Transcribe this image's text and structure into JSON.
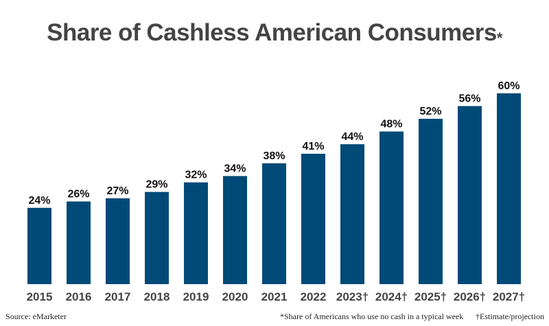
{
  "chart_data": {
    "type": "bar",
    "title": "Share of Cashless American Consumers",
    "title_mark": "*",
    "categories": [
      "2015",
      "2016",
      "2017",
      "2018",
      "2019",
      "2020",
      "2021",
      "2022",
      "2023†",
      "2024†",
      "2025†",
      "2026†",
      "2027†"
    ],
    "values": [
      24,
      26,
      27,
      29,
      32,
      34,
      38,
      41,
      44,
      48,
      52,
      56,
      60
    ],
    "value_suffix": "%",
    "ylim": [
      0,
      60
    ],
    "grid": false,
    "bar_color": "#004a77"
  },
  "footer": {
    "source": "Source: eMarketer",
    "note": "*Share of Americans who use no cash in a typical week",
    "projection_note": "†Estimate/projection"
  }
}
